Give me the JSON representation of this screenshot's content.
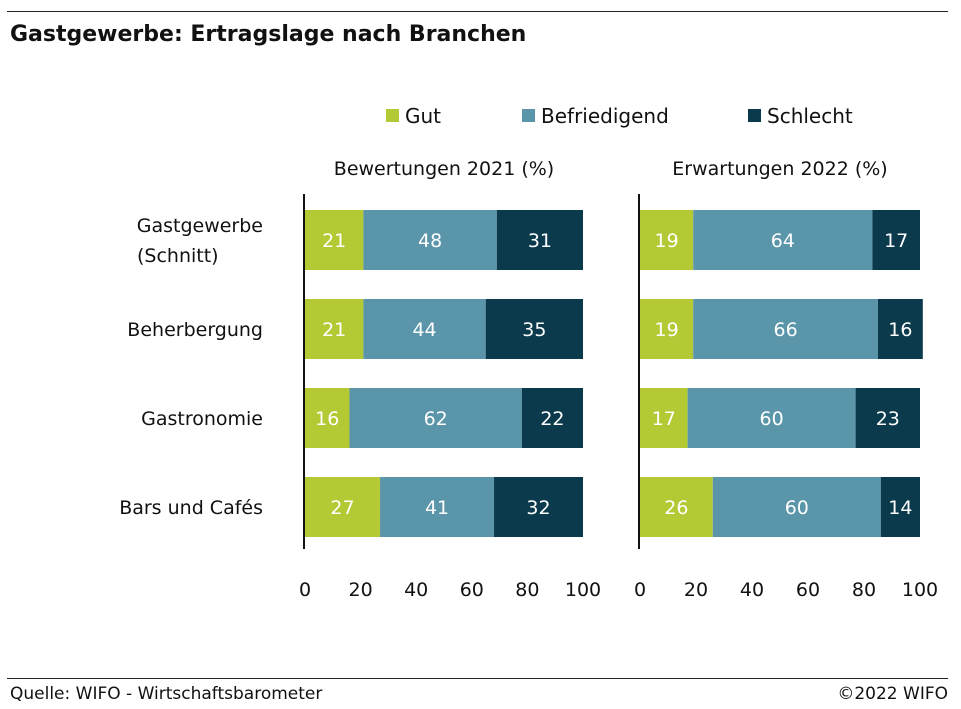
{
  "title": "Gastgewerbe: Ertragslage nach Branchen",
  "legend": [
    {
      "label": "Gut",
      "color": "#b5c935"
    },
    {
      "label": "Befriedigend",
      "color": "#5a95aa"
    },
    {
      "label": "Schlecht",
      "color": "#0b3a4c"
    }
  ],
  "footer": {
    "source": "Quelle: WIFO - Wirtschaftsbarometer",
    "copyright": "©2022 WIFO"
  },
  "chart_data": [
    {
      "type": "bar",
      "orientation": "horizontal",
      "stacked": true,
      "title": "Bewertungen 2021 (%)",
      "categories": [
        "Gastgewerbe (Schnitt)",
        "Beherbergung",
        "Gastronomie",
        "Bars und Cafés"
      ],
      "category_labels": [
        [
          "Gastgewerbe",
          "(Schnitt)"
        ],
        [
          "Beherbergung"
        ],
        [
          "Gastronomie"
        ],
        [
          "Bars und Cafés"
        ]
      ],
      "series": [
        {
          "name": "Gut",
          "values": [
            21,
            21,
            16,
            27
          ],
          "color": "#b5c935"
        },
        {
          "name": "Befriedigend",
          "values": [
            48,
            44,
            62,
            41
          ],
          "color": "#5a95aa"
        },
        {
          "name": "Schlecht",
          "values": [
            31,
            35,
            22,
            32
          ],
          "color": "#0b3a4c"
        }
      ],
      "xlim": [
        0,
        100
      ],
      "xticks": [
        0,
        20,
        40,
        60,
        80,
        100
      ],
      "grid": false,
      "legend_position": "top"
    },
    {
      "type": "bar",
      "orientation": "horizontal",
      "stacked": true,
      "title": "Erwartungen 2022 (%)",
      "categories": [
        "Gastgewerbe (Schnitt)",
        "Beherbergung",
        "Gastronomie",
        "Bars und Cafés"
      ],
      "series": [
        {
          "name": "Gut",
          "values": [
            19,
            19,
            17,
            26
          ],
          "color": "#b5c935"
        },
        {
          "name": "Befriedigend",
          "values": [
            64,
            66,
            60,
            60
          ],
          "color": "#5a95aa"
        },
        {
          "name": "Schlecht",
          "values": [
            17,
            16,
            23,
            14
          ],
          "color": "#0b3a4c"
        }
      ],
      "xlim": [
        0,
        100
      ],
      "xticks": [
        0,
        20,
        40,
        60,
        80,
        100
      ],
      "grid": false,
      "legend_position": "top"
    }
  ]
}
